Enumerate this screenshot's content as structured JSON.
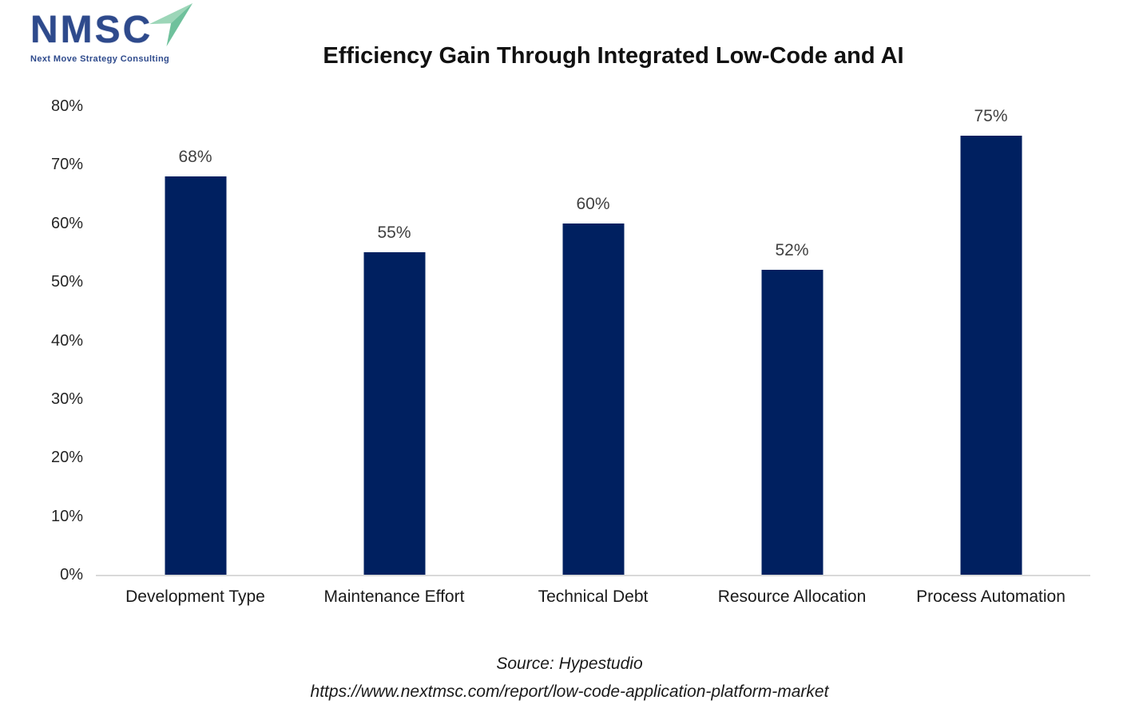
{
  "logo": {
    "acronym": "NMSC",
    "tagline": "Next Move Strategy Consulting",
    "navy": "#2e4a8c",
    "arrow_light": "#9cd6b8",
    "arrow_dark": "#6fc19c"
  },
  "title": "Efficiency Gain Through Integrated Low-Code and AI",
  "source": {
    "line1": "Source: Hypestudio",
    "line2": "https://www.nextmsc.com/report/low-code-application-platform-market"
  },
  "chart_data": {
    "type": "bar",
    "title": "Efficiency Gain Through Integrated Low-Code and AI",
    "categories": [
      "Development Type",
      "Maintenance Effort",
      "Technical Debt",
      "Resource Allocation",
      "Process Automation"
    ],
    "values": [
      68,
      55,
      60,
      52,
      75
    ],
    "data_labels": [
      "68%",
      "55%",
      "60%",
      "52%",
      "75%"
    ],
    "yticks": [
      "0%",
      "10%",
      "20%",
      "30%",
      "40%",
      "50%",
      "60%",
      "70%",
      "80%"
    ],
    "ylim": [
      0,
      80
    ],
    "xlabel": "",
    "ylabel": "",
    "bar_color": "#002060",
    "label_color": "#404040",
    "axis_line_color": "#d9d9d9",
    "grid": false,
    "legend": false
  }
}
